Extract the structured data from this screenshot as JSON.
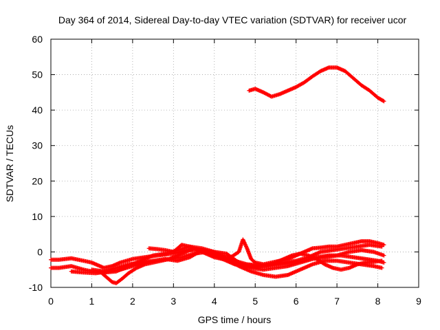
{
  "chart_data": {
    "type": "scatter",
    "title": "Day 364 of 2014, Sidereal Day-to-day VTEC variation (SDTVAR) for receiver ucor",
    "xlabel": "GPS time / hours",
    "ylabel": "SDTVAR / TECUs",
    "xlim": [
      0,
      9
    ],
    "ylim": [
      -10,
      60
    ],
    "xticks": [
      0,
      1,
      2,
      3,
      4,
      5,
      6,
      7,
      8,
      9
    ],
    "yticks": [
      -10,
      0,
      10,
      20,
      30,
      40,
      50,
      60
    ],
    "grid": true,
    "legend": "none",
    "marker": "plus",
    "series": [
      {
        "name": "s1",
        "x": [
          4.85,
          5.0,
          5.2,
          5.4,
          5.6,
          5.8,
          6.0,
          6.2,
          6.4,
          6.6,
          6.8,
          7.0,
          7.2,
          7.4,
          7.6,
          7.8,
          8.0,
          8.15
        ],
        "y": [
          45.5,
          46.0,
          45.0,
          43.8,
          44.5,
          45.5,
          46.5,
          47.8,
          49.5,
          51.0,
          52.0,
          52.0,
          51.0,
          49.0,
          47.0,
          45.5,
          43.5,
          42.5
        ]
      },
      {
        "name": "s2",
        "x": [
          0.0,
          0.2,
          0.5,
          0.8,
          1.0,
          1.3,
          1.5,
          1.7,
          2.0,
          2.3,
          2.6,
          3.0,
          3.3,
          3.6,
          3.9,
          4.2,
          4.5,
          4.8,
          5.1,
          5.4,
          5.7,
          6.0,
          6.3,
          6.6,
          6.9,
          7.2,
          7.5,
          7.8,
          8.1
        ],
        "y": [
          -2.2,
          -2.2,
          -1.8,
          -2.5,
          -3.0,
          -4.5,
          -4.0,
          -3.0,
          -2.0,
          -1.5,
          -1.0,
          -0.5,
          0.5,
          0.5,
          -0.2,
          -1.0,
          -2.5,
          -3.5,
          -3.8,
          -3.5,
          -3.0,
          -2.5,
          -1.5,
          0.0,
          0.5,
          1.0,
          1.5,
          2.0,
          1.5
        ]
      },
      {
        "name": "s3",
        "x": [
          0.0,
          0.2,
          0.5,
          0.8,
          1.0,
          1.3,
          1.6,
          1.9,
          2.2,
          2.5,
          2.8,
          3.1,
          3.4,
          3.7,
          4.0,
          4.3,
          4.6,
          4.9,
          5.2,
          5.5,
          5.8,
          6.1,
          6.4,
          6.7,
          7.0,
          7.3,
          7.6,
          7.9,
          8.1
        ],
        "y": [
          -4.5,
          -4.5,
          -4.0,
          -5.0,
          -5.5,
          -5.8,
          -5.5,
          -4.0,
          -2.5,
          -1.0,
          -0.5,
          0.5,
          1.5,
          1.0,
          0.0,
          -2.0,
          -4.0,
          -5.5,
          -6.5,
          -7.0,
          -6.5,
          -5.0,
          -3.5,
          -2.5,
          -2.5,
          -3.0,
          -3.5,
          -4.0,
          -4.5
        ]
      },
      {
        "name": "s4",
        "x": [
          0.5,
          0.8,
          1.1,
          1.4,
          1.7,
          2.0,
          2.3,
          2.6,
          2.9,
          3.2,
          3.5,
          3.8,
          4.1,
          4.4,
          4.7,
          5.0,
          5.3,
          5.6,
          5.9,
          6.2,
          6.5,
          6.8,
          7.1,
          7.4,
          7.7,
          8.0,
          8.15
        ],
        "y": [
          -5.5,
          -5.8,
          -6.0,
          -5.5,
          -5.0,
          -4.0,
          -3.0,
          -2.5,
          -2.0,
          -1.5,
          -0.5,
          0.0,
          -1.0,
          -2.5,
          -3.5,
          -4.0,
          -4.0,
          -3.5,
          -3.0,
          -2.5,
          -1.5,
          -1.0,
          -1.0,
          -1.5,
          -2.0,
          -2.5,
          -3.0
        ]
      },
      {
        "name": "s5",
        "x": [
          1.0,
          1.3,
          1.6,
          1.9,
          2.2,
          2.5,
          2.8,
          3.1,
          3.4,
          3.7,
          4.0,
          4.3,
          4.6,
          4.9,
          5.2,
          5.5,
          5.8,
          6.1,
          6.4,
          6.7,
          7.0,
          7.3,
          7.6,
          7.9,
          8.15
        ],
        "y": [
          -5.0,
          -5.5,
          -4.5,
          -3.5,
          -3.0,
          -2.5,
          -2.0,
          -2.5,
          -1.5,
          0.5,
          0.0,
          -0.5,
          -3.0,
          -4.5,
          -5.0,
          -4.5,
          -4.0,
          -3.0,
          -2.0,
          -1.5,
          -1.0,
          0.0,
          0.5,
          0.0,
          -1.0
        ]
      },
      {
        "name": "s6",
        "x": [
          1.2,
          1.35,
          1.5,
          1.6,
          1.75,
          1.9,
          2.1,
          2.3,
          2.5,
          2.7,
          2.9,
          3.1,
          3.3,
          3.5,
          3.7,
          3.9,
          4.1,
          4.3,
          4.5,
          4.7,
          4.9,
          5.1,
          5.3,
          5.5,
          5.7,
          5.9,
          6.1,
          6.3,
          6.5,
          6.7,
          6.9,
          7.1,
          7.3,
          7.5,
          7.7,
          7.9,
          8.1
        ],
        "y": [
          -5.5,
          -7.0,
          -8.5,
          -8.8,
          -7.5,
          -6.0,
          -4.5,
          -3.5,
          -3.0,
          -2.5,
          -2.0,
          -1.0,
          0.0,
          1.0,
          0.5,
          -0.5,
          -1.5,
          -2.5,
          -3.5,
          -4.0,
          -4.2,
          -4.2,
          -3.8,
          -3.0,
          -2.0,
          -1.0,
          -0.5,
          -1.0,
          -2.0,
          -3.5,
          -4.5,
          -5.0,
          -4.5,
          -3.5,
          -3.0,
          -2.8,
          -2.5
        ]
      },
      {
        "name": "s7",
        "x": [
          2.4,
          2.6,
          2.8,
          3.0,
          3.2,
          3.4,
          3.6,
          3.8,
          4.0,
          4.2,
          4.4,
          4.6,
          4.7,
          4.8,
          4.9,
          5.0,
          5.2,
          5.4,
          5.6,
          5.8,
          6.0,
          6.2,
          6.4,
          6.6,
          6.8,
          7.0,
          7.2,
          7.4,
          7.6,
          7.8,
          8.0,
          8.15
        ],
        "y": [
          1.0,
          0.8,
          0.5,
          0.0,
          2.0,
          1.5,
          0.5,
          -0.5,
          -1.5,
          -2.0,
          -1.5,
          0.0,
          3.5,
          1.0,
          -2.0,
          -3.0,
          -3.5,
          -3.0,
          -2.5,
          -2.0,
          -1.0,
          0.0,
          1.0,
          1.2,
          1.5,
          1.5,
          2.0,
          2.5,
          3.0,
          3.0,
          2.5,
          2.0
        ]
      }
    ]
  }
}
